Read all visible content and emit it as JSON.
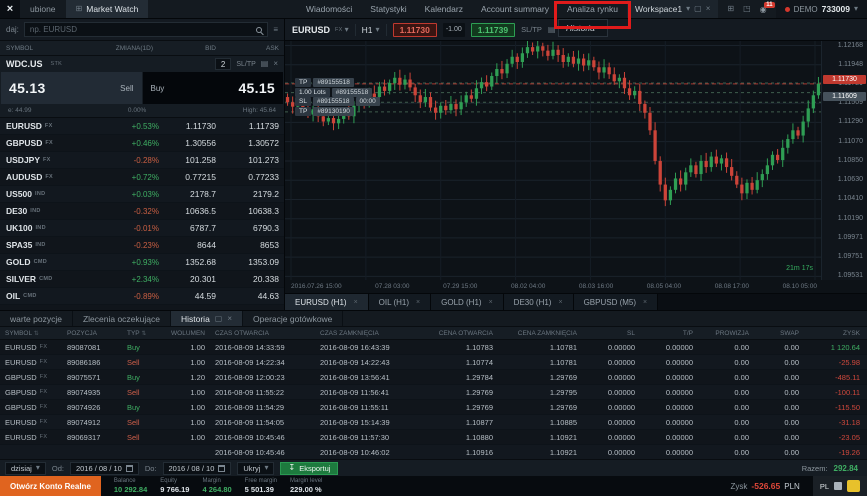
{
  "top_nav": {
    "tabs_left": [
      {
        "label": "ubione"
      },
      {
        "label": "Market Watch"
      }
    ],
    "menu_items": [
      "Wiadomości",
      "Statystyki",
      "Kalendarz",
      "Account summary",
      "Analiza rynku"
    ],
    "highlight": {
      "menu_index": 4,
      "dropdown_label": "Historia"
    },
    "workspace": {
      "label": "Workspace1"
    },
    "notification_count": "11",
    "account": {
      "type": "DEMO",
      "number": "733009"
    }
  },
  "market_watch": {
    "search": {
      "label": "daj:",
      "placeholder": "np. EURUSD"
    },
    "columns": [
      "SYMBOL",
      "ZMIANA(1D)",
      "BID",
      "ASK"
    ],
    "trade_widget": {
      "symbol": "WDC.US",
      "badge": "STK",
      "volume": "2",
      "sltp_label": "SL/TP",
      "sell_label": "Sell",
      "buy_label": "Buy",
      "sell_price": "45.13",
      "buy_price": "45.15",
      "spread_pct": "0.00%",
      "low_label": "e: 44.99",
      "high_label": "High: 45.64"
    },
    "symbols": [
      {
        "name": "EURUSD",
        "badge": "FX",
        "change": "+0.53%",
        "dir": "up",
        "bid": "1.11730",
        "ask": "1.11739"
      },
      {
        "name": "GBPUSD",
        "badge": "FX",
        "change": "+0.46%",
        "dir": "up",
        "bid": "1.30556",
        "ask": "1.30572"
      },
      {
        "name": "USDJPY",
        "badge": "FX",
        "change": "-0.28%",
        "dir": "down",
        "bid": "101.258",
        "ask": "101.273"
      },
      {
        "name": "AUDUSD",
        "badge": "FX",
        "change": "+0.72%",
        "dir": "up",
        "bid": "0.77215",
        "ask": "0.77233"
      },
      {
        "name": "US500",
        "badge": "IND",
        "change": "+0.03%",
        "dir": "up",
        "bid": "2178.7",
        "ask": "2179.2"
      },
      {
        "name": "DE30",
        "badge": "IND",
        "change": "-0.32%",
        "dir": "down",
        "bid": "10636.5",
        "ask": "10638.3"
      },
      {
        "name": "UK100",
        "badge": "IND",
        "change": "-0.01%",
        "dir": "down",
        "bid": "6787.7",
        "ask": "6790.3"
      },
      {
        "name": "SPA35",
        "badge": "IND",
        "change": "-0.23%",
        "dir": "down",
        "bid": "8644",
        "ask": "8653"
      },
      {
        "name": "GOLD",
        "badge": "CMD",
        "change": "+0.93%",
        "dir": "up",
        "bid": "1352.68",
        "ask": "1353.09"
      },
      {
        "name": "SILVER",
        "badge": "CMD",
        "change": "+2.34%",
        "dir": "up",
        "bid": "20.301",
        "ask": "20.338"
      },
      {
        "name": "OIL",
        "badge": "CMD",
        "change": "-0.89%",
        "dir": "down",
        "bid": "44.59",
        "ask": "44.63"
      },
      {
        "name": "COFFEE",
        "badge": "CMD",
        "change": "-0.55%",
        "dir": "down",
        "bid": "144.26",
        "ask": "144.76"
      }
    ]
  },
  "chart": {
    "symbol": "EURUSD",
    "symbol_badge": "FX",
    "timeframe": "H1",
    "sell_price": "1.11730",
    "spread": "-1.00",
    "buy_price": "1.11739",
    "sltp_label": "SL/TP",
    "countdown": "21m 17s",
    "marker_sell": "1.11730",
    "marker_open": "1.11609",
    "price_axis": [
      "1.12168",
      "1.11948",
      "1.11729",
      "1.11509",
      "1.11290",
      "1.11070",
      "1.10850",
      "1.10630",
      "1.10410",
      "1.10190",
      "1.09971",
      "1.09751",
      "1.09531"
    ],
    "time_axis": [
      "2016.07.26 15:00",
      "07.28 03:00",
      "07.29 15:00",
      "08.02 04:00",
      "08.03 16:00",
      "08.05 04:00",
      "08.08 17:00",
      "08.10 05:00"
    ],
    "orders": [
      {
        "parts": [
          "TP",
          "#89155518"
        ],
        "price": 1.1174
      },
      {
        "parts": [
          "1.00 Lots",
          "#89155518"
        ],
        "price": 1.1163
      },
      {
        "parts": [
          "SL",
          "#89155518",
          "00:00"
        ],
        "price": 1.1152
      },
      {
        "parts": [
          "TP",
          "#89130190"
        ],
        "price": 1.1141
      }
    ],
    "tabs": [
      {
        "label": "EURUSD (H1)"
      },
      {
        "label": "OIL (H1)"
      },
      {
        "label": "GOLD (H1)"
      },
      {
        "label": "DE30 (H1)"
      },
      {
        "label": "GBPUSD (M5)"
      }
    ],
    "chart_data": {
      "type": "candlestick",
      "ymin": 1.0949,
      "ymax": 1.1222,
      "closes": [
        1.1152,
        1.1147,
        1.115,
        1.1142,
        1.1138,
        1.1144,
        1.1136,
        1.113,
        1.1134,
        1.1128,
        1.1133,
        1.114,
        1.1136,
        1.1148,
        1.1155,
        1.115,
        1.1162,
        1.1158,
        1.117,
        1.1165,
        1.1174,
        1.118,
        1.1172,
        1.1178,
        1.1169,
        1.116,
        1.1152,
        1.1158,
        1.1146,
        1.114,
        1.1148,
        1.1143,
        1.115,
        1.1144,
        1.1152,
        1.116,
        1.1156,
        1.1168,
        1.1175,
        1.117,
        1.1182,
        1.119,
        1.1185,
        1.1196,
        1.1204,
        1.1198,
        1.1208,
        1.1215,
        1.121,
        1.1216,
        1.1211,
        1.1205,
        1.1212,
        1.1206,
        1.1198,
        1.1204,
        1.1196,
        1.1202,
        1.1194,
        1.12,
        1.1192,
        1.1186,
        1.1192,
        1.1184,
        1.1176,
        1.118,
        1.1168,
        1.116,
        1.1165,
        1.115,
        1.114,
        1.112,
        1.1085,
        1.1058,
        1.104,
        1.1052,
        1.1065,
        1.1058,
        1.1072,
        1.108,
        1.107,
        1.1085,
        1.1078,
        1.109,
        1.1082,
        1.1088,
        1.1078,
        1.1068,
        1.1058,
        1.1048,
        1.106,
        1.1052,
        1.1063,
        1.107,
        1.108,
        1.1092,
        1.1086,
        1.11,
        1.111,
        1.112,
        1.1114,
        1.113,
        1.1145,
        1.116,
        1.1173
      ]
    }
  },
  "bottom_panel": {
    "tabs": [
      {
        "label": "warte pozycje",
        "active": false
      },
      {
        "label": "Zlecenia oczekujące",
        "active": false
      },
      {
        "label": "Historia",
        "active": true
      },
      {
        "label": "Operacje gotówkowe",
        "active": false
      }
    ],
    "columns": [
      "SYMBOL",
      "POZYCJA",
      "TYP",
      "WOLUMEN",
      "CZAS OTWARCIA",
      "CZAS ZAMKNIĘCIA",
      "CENA OTWARCIA",
      "CENA ZAMKNIĘCIA",
      "SL",
      "T/P",
      "PROWIZJA",
      "SWAP",
      "ZYSK"
    ],
    "rows": [
      {
        "symbol": "EURUSD",
        "badge": "FX",
        "position": "89087081",
        "type": "Buy",
        "volume": "1.00",
        "open_time": "2016-08-09 14:33:59",
        "close_time": "2016-08-09 16:43:39",
        "open_price": "1.10783",
        "close_price": "1.10781",
        "sl": "0.00000",
        "tp": "0.00000",
        "commission": "0.00",
        "swap": "0.00",
        "profit": "1 120.64",
        "profit_dir": "up"
      },
      {
        "symbol": "EURUSD",
        "badge": "FX",
        "position": "89086186",
        "type": "Sell",
        "volume": "1.00",
        "open_time": "2016-08-09 14:22:34",
        "close_time": "2016-08-09 14:22:43",
        "open_price": "1.10774",
        "close_price": "1.10781",
        "sl": "0.00000",
        "tp": "0.00000",
        "commission": "0.00",
        "swap": "0.00",
        "profit": "-25.98",
        "profit_dir": "down"
      },
      {
        "symbol": "GBPUSD",
        "badge": "FX",
        "position": "89075571",
        "type": "Buy",
        "volume": "1.20",
        "open_time": "2016-08-09 12:00:23",
        "close_time": "2016-08-09 13:56:41",
        "open_price": "1.29784",
        "close_price": "1.29769",
        "sl": "0.00000",
        "tp": "0.00000",
        "commission": "0.00",
        "swap": "0.00",
        "profit": "-485.11",
        "profit_dir": "down"
      },
      {
        "symbol": "GBPUSD",
        "badge": "FX",
        "position": "89074935",
        "type": "Sell",
        "volume": "1.00",
        "open_time": "2016-08-09 11:55:22",
        "close_time": "2016-08-09 11:56:41",
        "open_price": "1.29769",
        "close_price": "1.29795",
        "sl": "0.00000",
        "tp": "0.00000",
        "commission": "0.00",
        "swap": "0.00",
        "profit": "-100.11",
        "profit_dir": "down"
      },
      {
        "symbol": "GBPUSD",
        "badge": "FX",
        "position": "89074926",
        "type": "Buy",
        "volume": "1.00",
        "open_time": "2016-08-09 11:54:29",
        "close_time": "2016-08-09 11:55:11",
        "open_price": "1.29769",
        "close_price": "1.29769",
        "sl": "0.00000",
        "tp": "0.00000",
        "commission": "0.00",
        "swap": "0.00",
        "profit": "-115.50",
        "profit_dir": "down"
      },
      {
        "symbol": "EURUSD",
        "badge": "FX",
        "position": "89074912",
        "type": "Sell",
        "volume": "1.00",
        "open_time": "2016-08-09 11:54:05",
        "close_time": "2016-08-09 15:14:39",
        "open_price": "1.10877",
        "close_price": "1.10885",
        "sl": "0.00000",
        "tp": "0.00000",
        "commission": "0.00",
        "swap": "0.00",
        "profit": "-31.18",
        "profit_dir": "down"
      },
      {
        "symbol": "EURUSD",
        "badge": "FX",
        "position": "89069317",
        "type": "Sell",
        "volume": "1.00",
        "open_time": "2016-08-09 10:45:46",
        "close_time": "2016-08-09 11:57:30",
        "open_price": "1.10880",
        "close_price": "1.10921",
        "sl": "0.00000",
        "tp": "0.00000",
        "commission": "0.00",
        "swap": "0.00",
        "profit": "-23.05",
        "profit_dir": "down"
      },
      {
        "symbol": "",
        "badge": "",
        "position": "",
        "type": "",
        "volume": "",
        "open_time": "2016-08-09 10:45:46",
        "close_time": "2016-08-09 10:46:02",
        "open_price": "1.10916",
        "close_price": "1.10921",
        "sl": "0.00000",
        "tp": "0.00000",
        "commission": "0.00",
        "swap": "0.00",
        "profit": "-19.26",
        "profit_dir": "down"
      }
    ],
    "filter": {
      "range_label": "dzisiaj",
      "from_label": "Od:",
      "from_value": "2016 / 08 / 10",
      "to_label": "Do:",
      "to_value": "2016 / 08 / 10",
      "hide_label": "Ukryj",
      "export_label": "Eksportuj",
      "total_label": "Razem:",
      "total_value": "292.84"
    }
  },
  "status_bar": {
    "cta": "Otwórz Konto Realne",
    "items": [
      {
        "label": "Balance",
        "value": "10 292.84",
        "color": "green"
      },
      {
        "label": "Equity",
        "value": "9 766.19",
        "color": "white"
      },
      {
        "label": "Margin",
        "value": "4 264.80",
        "color": "green"
      },
      {
        "label": "Free margin",
        "value": "5 501.39",
        "color": "white"
      },
      {
        "label": "Margin level",
        "value": "229.00 %",
        "color": "white"
      }
    ],
    "profit_label": "Zysk",
    "profit_value": "-526.65",
    "profit_currency": "PLN",
    "taskbar": {
      "lang": "PL"
    }
  },
  "colors": {
    "green": "#3fae63",
    "red": "#d0483c",
    "sell_red": "#c0392f",
    "buy_green": "#2d9e53",
    "accent_orange": "#e0641f",
    "highlight_red": "#e01b1b"
  }
}
